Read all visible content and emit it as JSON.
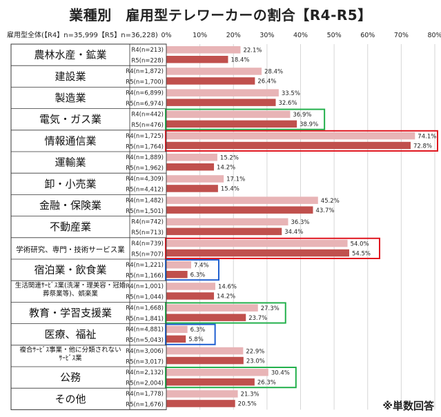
{
  "title": "業種別　雇用型テレワーカーの割合【R4-R5】",
  "footnote": "※単数回答",
  "chart_data": {
    "type": "bar",
    "orientation": "horizontal",
    "header_label": "雇用型全体(【R4】n=35,999【R5】n=36,228)",
    "xlim": [
      0,
      80
    ],
    "x_ticks": [
      "0%",
      "10%",
      "20%",
      "30%",
      "40%",
      "50%",
      "60%",
      "70%",
      "80%"
    ],
    "colors": {
      "R4": "#e8b4b6",
      "R5": "#c0504d",
      "highlight_green": "#22b04b",
      "highlight_red": "#e0161f",
      "highlight_blue": "#1f5fd0"
    },
    "categories": [
      {
        "name": "農林水産・鉱業",
        "r4_label": "R4(n=213)",
        "r4": 22.1,
        "r4_text": "22.1%",
        "r5_label": "R5(n=228)",
        "r5": 18.4,
        "r5_text": "18.4%"
      },
      {
        "name": "建設業",
        "r4_label": "R4(n=1,872)",
        "r4": 28.4,
        "r4_text": "28.4%",
        "r5_label": "R5(n=1,700)",
        "r5": 26.4,
        "r5_text": "26.4%"
      },
      {
        "name": "製造業",
        "r4_label": "R4(n=6,899)",
        "r4": 33.5,
        "r4_text": "33.5%",
        "r5_label": "R5(n=6,974)",
        "r5": 32.6,
        "r5_text": "32.6%"
      },
      {
        "name": "電気・ガス業",
        "r4_label": "R4(n=442)",
        "r4": 36.9,
        "r4_text": "36.9%",
        "r5_label": "R5(n=476)",
        "r5": 38.9,
        "r5_text": "38.9%",
        "highlight": "green"
      },
      {
        "name": "情報通信業",
        "r4_label": "R4(n=1,725)",
        "r4": 74.1,
        "r4_text": "74.1%",
        "r5_label": "R5(n=1,764)",
        "r5": 72.8,
        "r5_text": "72.8%",
        "highlight": "red"
      },
      {
        "name": "運輸業",
        "r4_label": "R4(n=1,889)",
        "r4": 15.2,
        "r4_text": "15.2%",
        "r5_label": "R5(n=1,962)",
        "r5": 14.2,
        "r5_text": "14.2%"
      },
      {
        "name": "卸・小売業",
        "r4_label": "R4(n=4,309)",
        "r4": 17.1,
        "r4_text": "17.1%",
        "r5_label": "R5(n=4,412)",
        "r5": 15.4,
        "r5_text": "15.4%"
      },
      {
        "name": "金融・保険業",
        "r4_label": "R4(n=1,482)",
        "r4": 45.2,
        "r4_text": "45.2%",
        "r5_label": "R5(n=1,501)",
        "r5": 43.7,
        "r5_text": "43.7%"
      },
      {
        "name": "不動産業",
        "r4_label": "R4(n=742)",
        "r4": 36.3,
        "r4_text": "36.3%",
        "r5_label": "R5(n=713)",
        "r5": 34.4,
        "r5_text": "34.4%"
      },
      {
        "name": "学術研究、専門・技術サービス業",
        "r4_label": "R4(n=739)",
        "r4": 54.0,
        "r4_text": "54.0%",
        "r5_label": "R5(n=707)",
        "r5": 54.5,
        "r5_text": "54.5%",
        "highlight": "red",
        "small": true
      },
      {
        "name": "宿泊業・飲食業",
        "r4_label": "R4(n=1,221)",
        "r4": 7.4,
        "r4_text": "7.4%",
        "r5_label": "R5(n=1,166)",
        "r5": 6.3,
        "r5_text": "6.3%",
        "highlight": "blue"
      },
      {
        "name": "生活関連ｻｰﾋﾞｽ業(洗濯・理美容・冠婚葬祭業等)、娯楽業",
        "name_lines": [
          "生活関連ｻｰﾋﾞｽ業(洗濯・理美容・冠婚",
          "葬祭業等)、娯楽業"
        ],
        "r4_label": "R4(n=1,001)",
        "r4": 14.6,
        "r4_text": "14.6%",
        "r5_label": "R5(n=1,044)",
        "r5": 14.2,
        "r5_text": "14.2%",
        "small": true
      },
      {
        "name": "教育・学習支援業",
        "r4_label": "R4(n=1,668)",
        "r4": 27.3,
        "r4_text": "27.3%",
        "r5_label": "R5(n=1,841)",
        "r5": 23.7,
        "r5_text": "23.7%",
        "highlight": "green"
      },
      {
        "name": "医療、福祉",
        "r4_label": "R4(n=4,881)",
        "r4": 6.3,
        "r4_text": "6.3%",
        "r5_label": "R5(n=5,043)",
        "r5": 5.8,
        "r5_text": "5.8%",
        "highlight": "blue"
      },
      {
        "name": "複合ｻｰﾋﾞｽ事業・他に分類されないｻｰﾋﾞｽ業",
        "name_lines": [
          "複合ｻｰﾋﾞｽ事業・他に分類されない",
          "ｻｰﾋﾞｽ業"
        ],
        "r4_label": "R4(n=3,006)",
        "r4": 22.9,
        "r4_text": "22.9%",
        "r5_label": "R5(n=3,017)",
        "r5": 23.0,
        "r5_text": "23.0%",
        "small": true
      },
      {
        "name": "公務",
        "r4_label": "R4(n=2,132)",
        "r4": 30.4,
        "r4_text": "30.4%",
        "r5_label": "R5(n=2,004)",
        "r5": 26.3,
        "r5_text": "26.3%",
        "highlight": "green"
      },
      {
        "name": "その他",
        "r4_label": "R4(n=1,778)",
        "r4": 21.3,
        "r4_text": "21.3%",
        "r5_label": "R5(n=1,676)",
        "r5": 20.5,
        "r5_text": "20.5%"
      }
    ]
  }
}
